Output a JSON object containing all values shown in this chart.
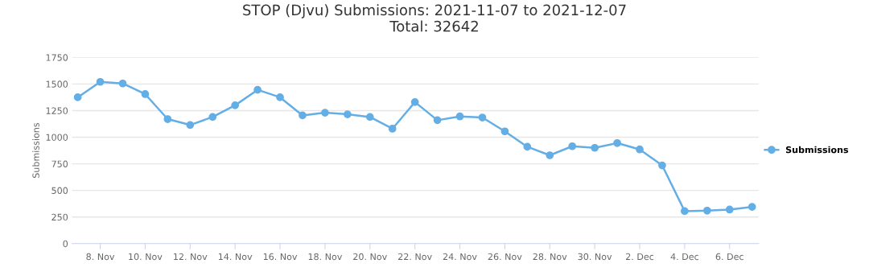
{
  "chart_data": {
    "type": "line",
    "title": "STOP (Djvu) Submissions: 2021-11-07 to 2021-12-07\nTotal: 32642",
    "ylabel": "Submissions",
    "x": [
      "2021-11-07",
      "2021-11-08",
      "2021-11-09",
      "2021-11-10",
      "2021-11-11",
      "2021-11-12",
      "2021-11-13",
      "2021-11-14",
      "2021-11-15",
      "2021-11-16",
      "2021-11-17",
      "2021-11-18",
      "2021-11-19",
      "2021-11-20",
      "2021-11-21",
      "2021-11-22",
      "2021-11-23",
      "2021-11-24",
      "2021-11-25",
      "2021-11-26",
      "2021-11-27",
      "2021-11-28",
      "2021-11-29",
      "2021-11-30",
      "2021-12-01",
      "2021-12-02",
      "2021-12-03",
      "2021-12-04",
      "2021-12-05",
      "2021-12-06",
      "2021-12-07"
    ],
    "series": [
      {
        "name": "Submissions",
        "color": "#64aee6",
        "values": [
          1375,
          1520,
          1505,
          1405,
          1170,
          1115,
          1190,
          1300,
          1445,
          1375,
          1205,
          1230,
          1215,
          1190,
          1080,
          1330,
          1160,
          1195,
          1185,
          1055,
          910,
          830,
          915,
          900,
          945,
          885,
          735,
          305,
          310,
          320,
          345
        ]
      }
    ],
    "xlim": [
      "2021-11-06T18:00",
      "2021-12-07T07:00"
    ],
    "xticks": [
      {
        "value": "2021-11-08",
        "label": "8. Nov"
      },
      {
        "value": "2021-11-10",
        "label": "10. Nov"
      },
      {
        "value": "2021-11-12",
        "label": "12. Nov"
      },
      {
        "value": "2021-11-14",
        "label": "14. Nov"
      },
      {
        "value": "2021-11-16",
        "label": "16. Nov"
      },
      {
        "value": "2021-11-18",
        "label": "18. Nov"
      },
      {
        "value": "2021-11-20",
        "label": "20. Nov"
      },
      {
        "value": "2021-11-22",
        "label": "22. Nov"
      },
      {
        "value": "2021-11-24",
        "label": "24. Nov"
      },
      {
        "value": "2021-11-26",
        "label": "26. Nov"
      },
      {
        "value": "2021-11-28",
        "label": "28. Nov"
      },
      {
        "value": "2021-11-30",
        "label": "30. Nov"
      },
      {
        "value": "2021-12-02",
        "label": "2. Dec"
      },
      {
        "value": "2021-12-04",
        "label": "4. Dec"
      },
      {
        "value": "2021-12-06",
        "label": "6. Dec"
      }
    ],
    "ylim": [
      0,
      1750
    ],
    "yticks": [
      0,
      250,
      500,
      750,
      1000,
      1250,
      1500,
      1750
    ],
    "grid": "y",
    "legend": "right",
    "marker": "circle",
    "line_style": "solid"
  }
}
